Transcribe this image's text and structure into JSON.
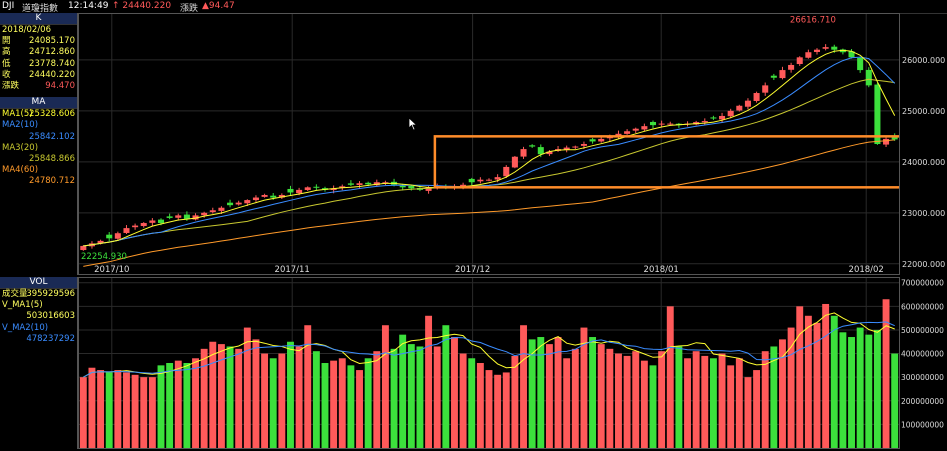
{
  "header": {
    "symbol": "DJI",
    "name": "道瓊指數",
    "time": "12:14:49",
    "price": "↑ 24440.220",
    "change_label": "漲跌",
    "change": "▲94.47"
  },
  "k_panel": {
    "title": "K",
    "date": "2018/02/06",
    "rows": [
      {
        "label": "開",
        "value": "24085.170"
      },
      {
        "label": "高",
        "value": "24712.860"
      },
      {
        "label": "低",
        "value": "23778.740"
      },
      {
        "label": "收",
        "value": "24440.220"
      },
      {
        "label": "漲跌",
        "value": "94.470"
      }
    ]
  },
  "ma_panel": {
    "title": "MA",
    "rows": [
      {
        "label": "MA1(5)",
        "value": "25328.606"
      },
      {
        "label": "MA2(10)",
        "value": "25842.102"
      },
      {
        "label": "MA3(20)",
        "value": "25848.866"
      },
      {
        "label": "MA4(60)",
        "value": "24780.712"
      }
    ]
  },
  "vol_panel": {
    "title": "VOL",
    "rows": [
      {
        "label": "成交量",
        "value": "395929596"
      },
      {
        "label": "V_MA1(5)",
        "value": "503016603"
      },
      {
        "label": "V_MA2(10)",
        "value": "478237292"
      }
    ]
  },
  "colors": {
    "up": "#ff5a5a",
    "down": "#3ce03c",
    "ma5": "#ffff30",
    "ma10": "#3a8cff",
    "ma20": "#c8c830",
    "ma60": "#ff9a2a",
    "highlight": "#ff8c2a",
    "grid": "#2a2a2a"
  },
  "chart_data": [
    {
      "type": "candlestick",
      "x_labels": [
        "2017/10",
        "2017/11",
        "2017/12",
        "2018/01",
        "2018/02"
      ],
      "y_ticks": [
        "26000.000",
        "25000.000",
        "24000.000",
        "23000.000",
        "22000.000"
      ],
      "y_range": [
        21800,
        26900
      ],
      "annotations": {
        "high": "26616.710",
        "low": "22254.930"
      },
      "highlight_range": [
        23500,
        24500
      ],
      "close": [
        22350,
        22400,
        22450,
        22500,
        22600,
        22700,
        22750,
        22800,
        22850,
        22800,
        22900,
        22950,
        22880,
        22950,
        23000,
        23050,
        23100,
        23150,
        23200,
        23250,
        23300,
        23350,
        23300,
        23350,
        23400,
        23450,
        23500,
        23500,
        23450,
        23480,
        23520,
        23550,
        23580,
        23560,
        23600,
        23600,
        23550,
        23500,
        23480,
        23450,
        23500,
        23520,
        23480,
        23500,
        23550,
        23600,
        23650,
        23650,
        23700,
        23900,
        24100,
        24250,
        24300,
        24150,
        24200,
        24250,
        24280,
        24300,
        24350,
        24400,
        24450,
        24500,
        24550,
        24600,
        24650,
        24700,
        24720,
        24750,
        24750,
        24720,
        24750,
        24780,
        24800,
        24850,
        24900,
        25000,
        25100,
        25200,
        25350,
        25500,
        25650,
        25800,
        25900,
        26050,
        26150,
        26200,
        26250,
        26200,
        26150,
        26050,
        25800,
        25500,
        24350,
        24450,
        24440
      ]
    },
    {
      "type": "bar",
      "name": "VOL",
      "y_ticks": [
        "700000000",
        "600000000",
        "500000000",
        "400000000",
        "300000000",
        "200000000",
        "100000000"
      ],
      "y_range": [
        0,
        720000000
      ],
      "values": [
        300,
        340,
        330,
        320,
        330,
        320,
        310,
        300,
        300,
        350,
        360,
        370,
        360,
        380,
        420,
        450,
        440,
        430,
        420,
        510,
        460,
        400,
        380,
        400,
        450,
        430,
        520,
        410,
        360,
        370,
        380,
        350,
        330,
        380,
        410,
        520,
        420,
        480,
        440,
        430,
        560,
        430,
        520,
        470,
        400,
        380,
        360,
        330,
        310,
        320,
        390,
        520,
        460,
        470,
        440,
        470,
        380,
        420,
        510,
        470,
        440,
        420,
        400,
        390,
        410,
        370,
        350,
        410,
        600,
        430,
        380,
        410,
        390,
        380,
        400,
        350,
        380,
        300,
        330,
        410,
        430,
        460,
        510,
        600,
        560,
        530,
        610,
        560,
        490,
        470,
        510,
        480,
        500,
        630,
        400
      ]
    }
  ]
}
